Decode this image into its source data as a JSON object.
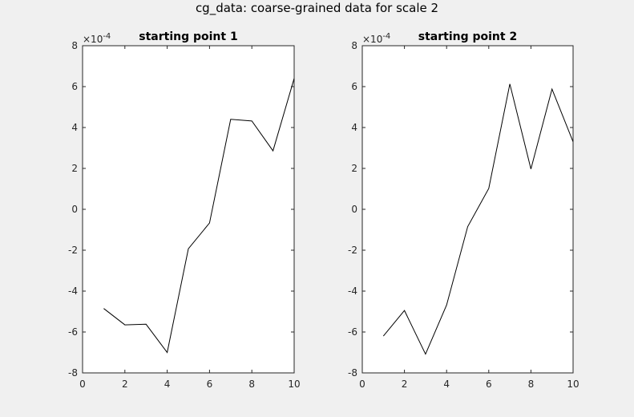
{
  "figure": {
    "title": "cg_data: coarse-grained data for scale 2"
  },
  "chart_data": [
    {
      "type": "line",
      "title": "starting point 1",
      "xlabel": "",
      "ylabel": "",
      "xlim": [
        0,
        10
      ],
      "ylim": [
        -8,
        8
      ],
      "xticks": [
        "0",
        "2",
        "4",
        "6",
        "8",
        "10"
      ],
      "yticks": [
        "-8",
        "-6",
        "-4",
        "-2",
        "0",
        "2",
        "4",
        "6",
        "8"
      ],
      "y_exponent_label": "×10",
      "y_exponent_power": "-4",
      "grid": false,
      "line_color": "#000000",
      "series": [
        {
          "x": [
            1,
            2,
            3,
            4,
            5,
            6,
            7,
            8,
            9,
            10
          ],
          "values": [
            -4.85,
            -5.65,
            -5.62,
            -7.0,
            -1.93,
            -0.67,
            4.4,
            4.32,
            2.86,
            6.4
          ]
        }
      ]
    },
    {
      "type": "line",
      "title": "starting point 2",
      "xlabel": "",
      "ylabel": "",
      "xlim": [
        0,
        10
      ],
      "ylim": [
        -8,
        8
      ],
      "xticks": [
        "0",
        "2",
        "4",
        "6",
        "8",
        "10"
      ],
      "yticks": [
        "-8",
        "-6",
        "-4",
        "-2",
        "0",
        "2",
        "4",
        "6",
        "8"
      ],
      "y_exponent_label": "×10",
      "y_exponent_power": "-4",
      "grid": false,
      "line_color": "#000000",
      "series": [
        {
          "x": [
            1,
            2,
            3,
            4,
            5,
            6,
            7,
            8,
            9,
            10
          ],
          "values": [
            -6.2,
            -4.95,
            -7.08,
            -4.68,
            -0.85,
            1.02,
            6.13,
            1.97,
            5.88,
            3.3
          ]
        }
      ]
    }
  ]
}
